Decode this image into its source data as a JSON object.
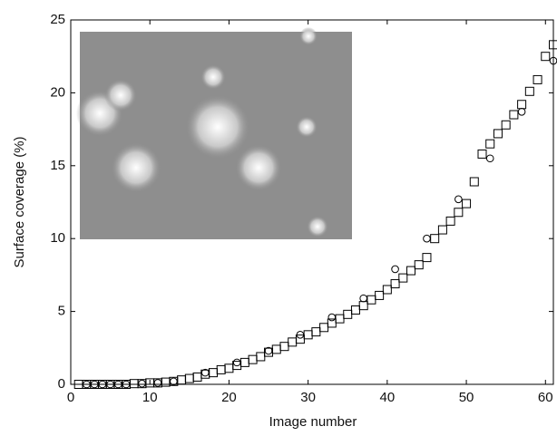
{
  "chart_data": {
    "type": "scatter",
    "x_label": "Image number",
    "y_label": "Surface coverage (%)",
    "xlim": [
      0,
      61
    ],
    "xticks": [
      0,
      10,
      20,
      30,
      40,
      50,
      60
    ],
    "ylim": [
      0,
      25
    ],
    "yticks": [
      0,
      5,
      10,
      15,
      20,
      25
    ],
    "series": [
      {
        "color": "#000000",
        "marker": "square",
        "x": [
          1,
          2,
          3,
          4,
          5,
          6,
          7,
          8,
          9,
          10,
          11,
          12,
          13,
          14,
          15,
          16,
          17,
          18,
          19,
          20,
          21,
          22,
          23,
          24,
          25,
          26,
          27,
          28,
          29,
          30,
          31,
          32,
          33,
          34,
          35,
          36,
          37,
          38,
          39,
          40,
          41,
          42,
          43,
          44,
          45,
          46,
          47,
          48,
          49,
          50,
          51,
          52,
          53,
          54,
          55,
          56,
          57,
          58,
          59,
          60,
          61
        ],
        "values": [
          0,
          0,
          0,
          0,
          0,
          0,
          0,
          0.05,
          0.05,
          0.1,
          0.1,
          0.15,
          0.2,
          0.3,
          0.4,
          0.5,
          0.7,
          0.8,
          1.0,
          1.1,
          1.3,
          1.5,
          1.7,
          1.9,
          2.2,
          2.4,
          2.6,
          2.9,
          3.1,
          3.4,
          3.6,
          3.9,
          4.2,
          4.5,
          4.8,
          5.1,
          5.4,
          5.8,
          6.1,
          6.5,
          6.9,
          7.3,
          7.8,
          8.2,
          8.7,
          10.0,
          10.6,
          11.2,
          11.8,
          12.4,
          13.9,
          15.8,
          16.5,
          17.2,
          17.8,
          18.5,
          19.2,
          20.1,
          20.9,
          22.5,
          23.3
        ]
      },
      {
        "color": "#000000",
        "marker": "circle",
        "x": [
          2,
          3,
          4,
          5,
          6,
          7,
          9,
          11,
          13,
          17,
          21,
          25,
          29,
          33,
          37,
          41,
          45,
          49,
          53,
          57,
          61
        ],
        "values": [
          0,
          0,
          0,
          0,
          0,
          0,
          0.05,
          0.1,
          0.2,
          0.8,
          1.5,
          2.3,
          3.4,
          4.6,
          5.9,
          7.9,
          10.0,
          12.7,
          15.5,
          18.7,
          22.2
        ]
      }
    ]
  }
}
